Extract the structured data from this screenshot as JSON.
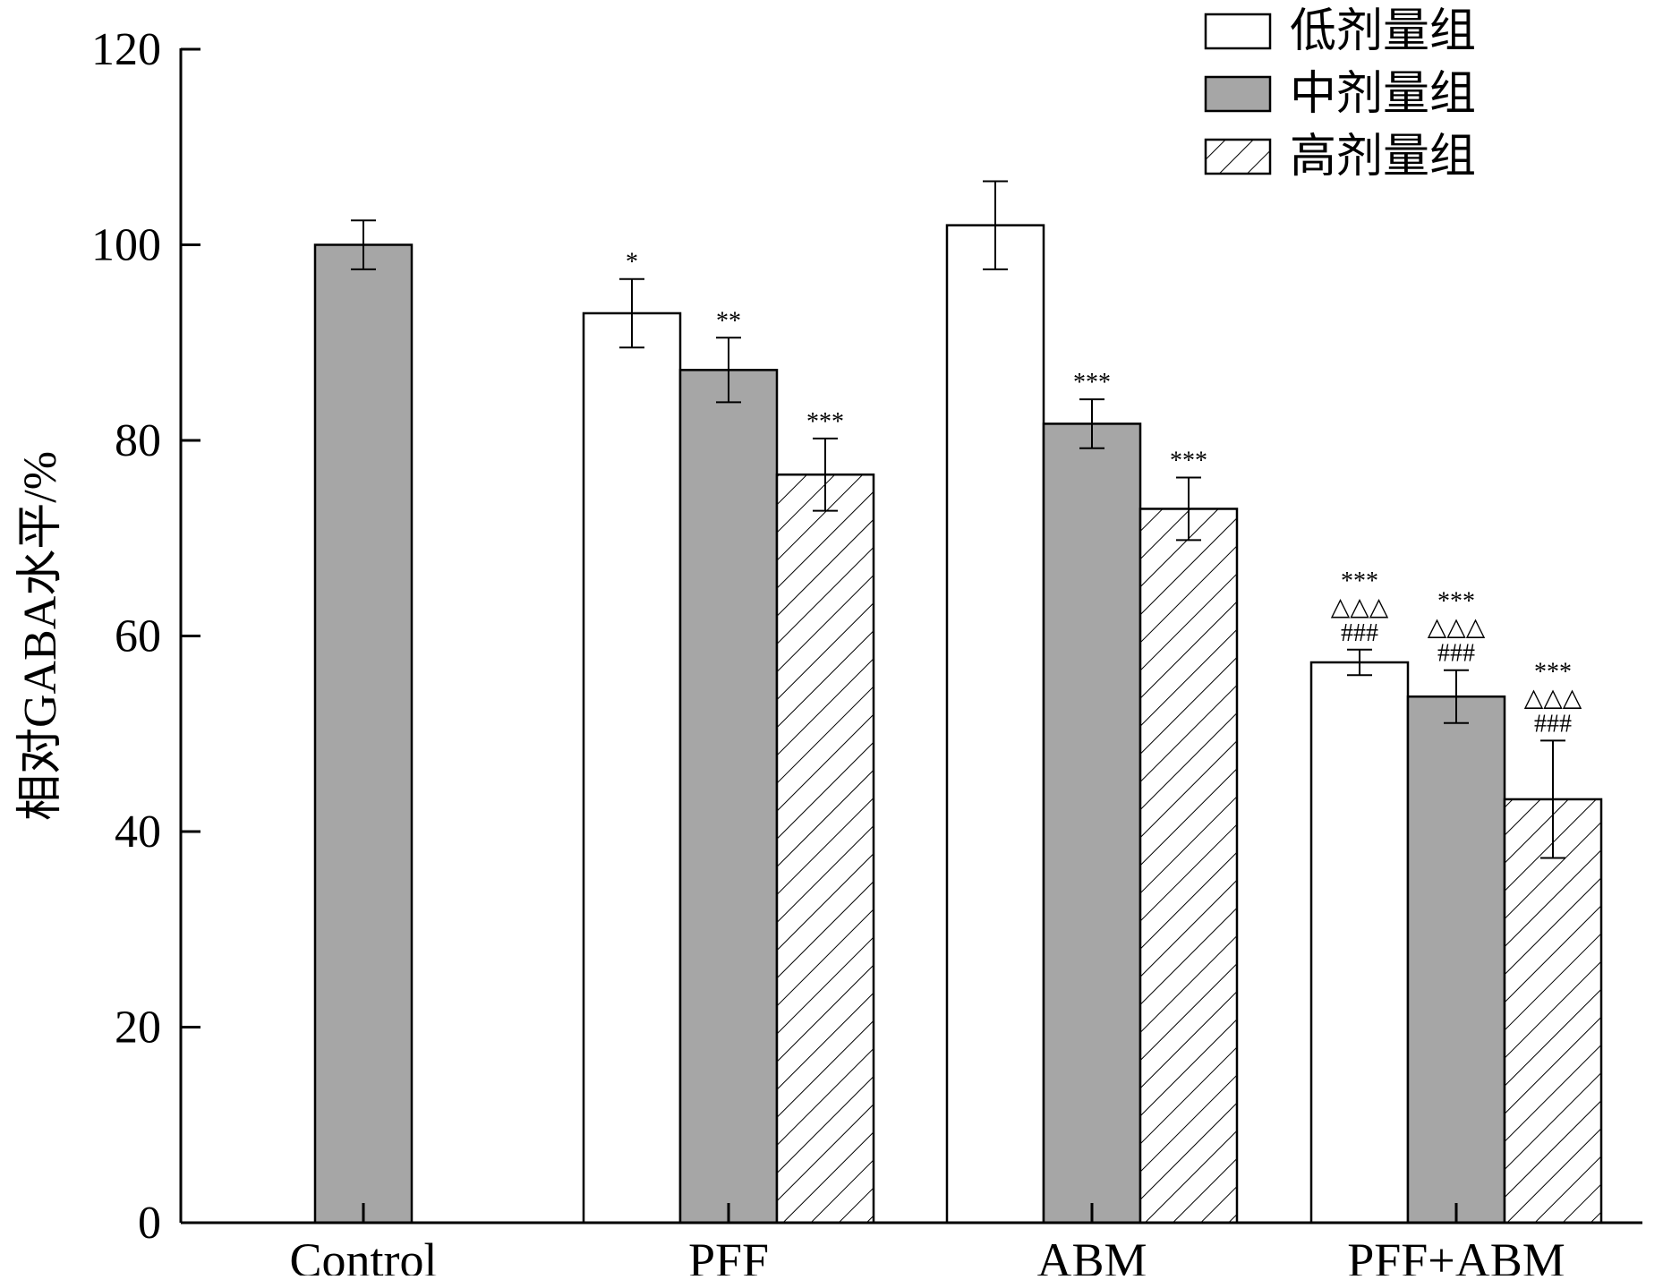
{
  "chart_data": {
    "type": "bar",
    "ylabel": "相对GABA水平/%",
    "xlabel": "",
    "ylim": [
      0,
      120
    ],
    "yticks": [
      "0",
      "20",
      "40",
      "60",
      "80",
      "100",
      "120"
    ],
    "categories": [
      "Control",
      "PFF",
      "ABM",
      "PFF+ABM"
    ],
    "legend_position": "top-right",
    "colors": {
      "low": "#ffffff",
      "mid": "#a6a6a6",
      "high_hatch": "#000000",
      "axis": "#000000"
    },
    "series": [
      {
        "name": "低剂量组",
        "style": "white",
        "values": [
          null,
          93.0,
          102.0,
          57.3
        ],
        "errors": [
          null,
          3.5,
          4.5,
          1.3
        ]
      },
      {
        "name": "中剂量组",
        "style": "gray",
        "values": [
          100.0,
          87.2,
          81.7,
          53.8
        ],
        "errors": [
          2.5,
          3.3,
          2.5,
          2.7
        ]
      },
      {
        "name": "高剂量组",
        "style": "hatch",
        "values": [
          null,
          76.5,
          73.0,
          43.3
        ],
        "errors": [
          null,
          3.7,
          3.2,
          6.0
        ]
      }
    ],
    "annotations": [
      {
        "category": 1,
        "series": 0,
        "lines": [
          "*"
        ]
      },
      {
        "category": 1,
        "series": 1,
        "lines": [
          "**"
        ]
      },
      {
        "category": 1,
        "series": 2,
        "lines": [
          "***"
        ]
      },
      {
        "category": 2,
        "series": 1,
        "lines": [
          "***"
        ]
      },
      {
        "category": 2,
        "series": 2,
        "lines": [
          "***"
        ]
      },
      {
        "category": 3,
        "series": 0,
        "lines": [
          "***",
          "△△△",
          "###"
        ]
      },
      {
        "category": 3,
        "series": 1,
        "lines": [
          "***",
          "△△△",
          "###"
        ]
      },
      {
        "category": 3,
        "series": 2,
        "lines": [
          "***",
          "△△△",
          "###"
        ]
      }
    ]
  }
}
